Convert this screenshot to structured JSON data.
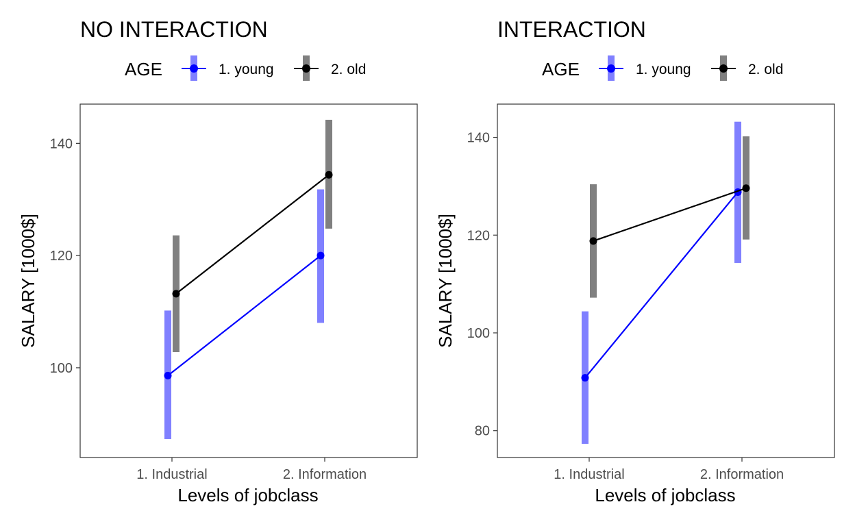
{
  "chart_data": [
    {
      "type": "line",
      "title": "NO INTERACTION",
      "xlabel": "Levels of jobclass",
      "ylabel": "SALARY [1000$]",
      "categories": [
        "1. Industrial",
        "2. Information"
      ],
      "ylim": [
        84,
        147
      ],
      "yticks": [
        100,
        120,
        140
      ],
      "grid": false,
      "legend": {
        "title": "AGE",
        "position": "top"
      },
      "series": [
        {
          "name": "1. young",
          "color": "#0000ff",
          "band_color": "#8080ff",
          "values": [
            98.6,
            120.0
          ],
          "lower": [
            87.3,
            108.0
          ],
          "upper": [
            110.2,
            131.8
          ]
        },
        {
          "name": "2. old",
          "color": "#000000",
          "band_color": "#808080",
          "values": [
            113.2,
            134.4
          ],
          "lower": [
            102.8,
            124.8
          ],
          "upper": [
            123.6,
            144.2
          ]
        }
      ]
    },
    {
      "type": "line",
      "title": "INTERACTION",
      "xlabel": "Levels of jobclass",
      "ylabel": "SALARY [1000$]",
      "categories": [
        "1. Industrial",
        "2. Information"
      ],
      "ylim": [
        74.5,
        146.8
      ],
      "yticks": [
        80,
        100,
        120,
        140
      ],
      "grid": false,
      "legend": {
        "title": "AGE",
        "position": "top"
      },
      "series": [
        {
          "name": "1. young",
          "color": "#0000ff",
          "band_color": "#8080ff",
          "values": [
            90.8,
            128.8
          ],
          "lower": [
            77.3,
            114.3
          ],
          "upper": [
            104.4,
            143.2
          ]
        },
        {
          "name": "2. old",
          "color": "#000000",
          "band_color": "#808080",
          "values": [
            118.8,
            129.6
          ],
          "lower": [
            107.2,
            119.1
          ],
          "upper": [
            130.4,
            140.2
          ]
        }
      ]
    }
  ]
}
